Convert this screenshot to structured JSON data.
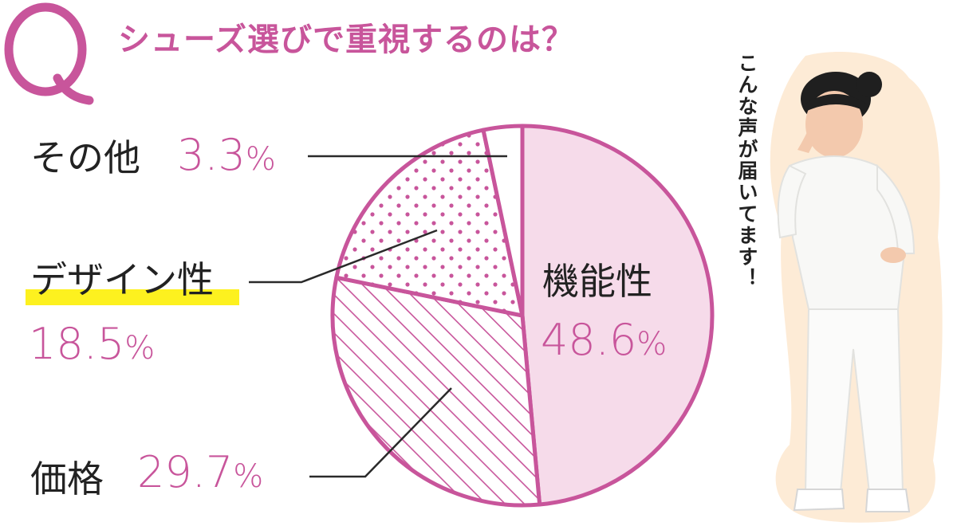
{
  "colors": {
    "accent": "#c8559b",
    "accent_fill": "#f6dbea",
    "highlight": "#fdf11f",
    "text": "#222222",
    "leader": "#2a2a2a",
    "photo_bg": "#fdebd6"
  },
  "question": {
    "mark": "Q",
    "title": "シューズ選びで重視するのは？"
  },
  "chart_data": {
    "type": "pie",
    "title": "シューズ選びで重視するのは？",
    "unit": "%",
    "start": "12 o'clock, clockwise",
    "slices": [
      {
        "key": "functionality",
        "label": "機能性",
        "value": 48.6,
        "display": "48.6",
        "fill": "solid"
      },
      {
        "key": "price",
        "label": "価格",
        "value": 29.7,
        "display": "29.7",
        "fill": "hatch"
      },
      {
        "key": "design",
        "label": "デザイン性",
        "value": 18.5,
        "display": "18.5",
        "fill": "dots"
      },
      {
        "key": "other",
        "label": "その他",
        "value": 3.3,
        "display": "3.3",
        "fill": "blank"
      }
    ]
  },
  "callout": {
    "text": "こんな声が届いてます！",
    "image": "woman-in-white-uniform"
  }
}
